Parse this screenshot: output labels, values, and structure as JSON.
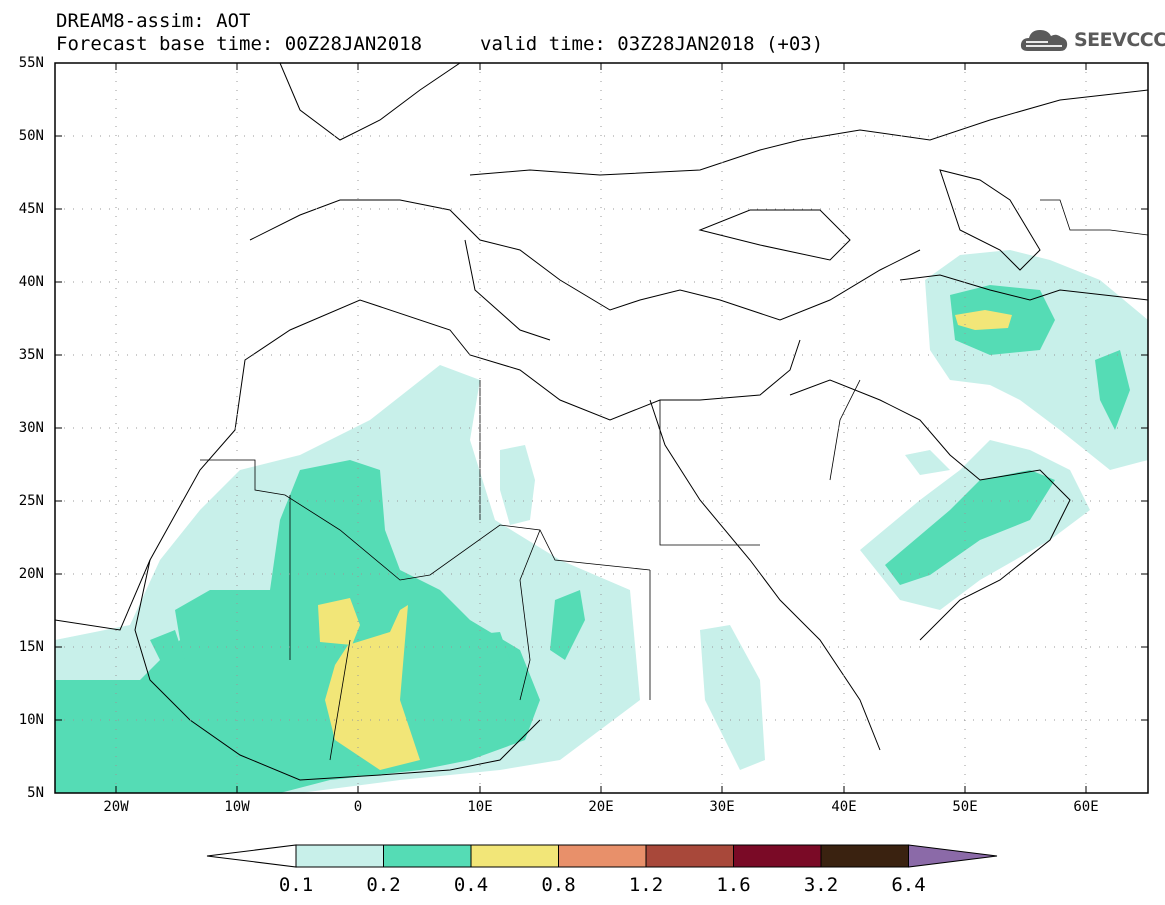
{
  "header": {
    "title_line1": "DREAM8-assim: AOT",
    "title_line2_left": "Forecast base time: 00Z28JAN2018",
    "title_line2_right": "valid time: 03Z28JAN2018 (+03)",
    "logo_text": "SEEVCCC",
    "logo_icon": "cloud-icon"
  },
  "map": {
    "lat_labels": [
      "55N",
      "50N",
      "45N",
      "40N",
      "35N",
      "30N",
      "25N",
      "20N",
      "15N",
      "10N",
      "5N"
    ],
    "lon_labels": [
      "20W",
      "10W",
      "0",
      "10E",
      "20E",
      "30E",
      "40E",
      "50E",
      "60E"
    ],
    "lat_range": [
      5,
      55
    ],
    "lon_range": [
      -25,
      65
    ],
    "gridlines": "dotted"
  },
  "colorbar": {
    "labels": [
      "0.1",
      "0.2",
      "0.4",
      "0.8",
      "1.2",
      "1.6",
      "3.2",
      "6.4"
    ],
    "colors": [
      "#ffffff",
      "#c8f0ea",
      "#55dcb5",
      "#f2e678",
      "#e8906a",
      "#a8483a",
      "#7a0a26",
      "#3a2210",
      "#8b6aa8"
    ]
  }
}
